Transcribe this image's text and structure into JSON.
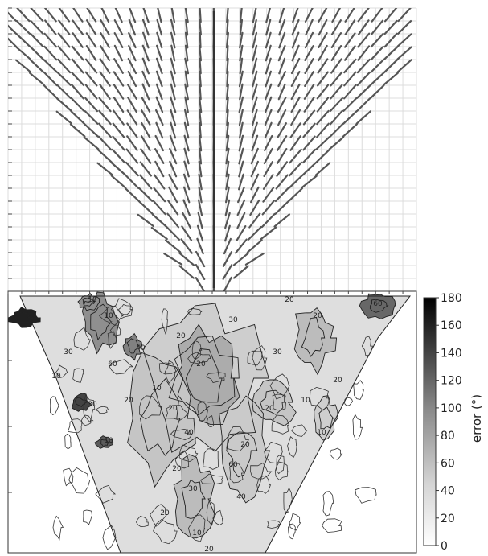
{
  "chart_data": [
    {
      "type": "quiver",
      "title": "",
      "xlabel": "",
      "ylabel": "",
      "grid": true,
      "grid_columns": 30,
      "grid_rows": 22,
      "stroke_color": "#555555",
      "description_of_field": "orientation line field; vertical at centre, fanning outward toward the edges, within a downward-pointing triangle"
    },
    {
      "type": "heatmap",
      "subtype": "contour",
      "title": "",
      "xlabel": "",
      "ylabel": "",
      "colorbar": {
        "label": "error (°)",
        "min": 0,
        "max": 180,
        "ticks": [
          0,
          20,
          40,
          60,
          80,
          100,
          120,
          140,
          160,
          180
        ],
        "low_color": "#ffffff",
        "high_color": "#000000"
      },
      "contour_levels": [
        10,
        20,
        30,
        40,
        60
      ],
      "contour_labels": [
        {
          "text": "10"
        },
        {
          "text": "20"
        },
        {
          "text": "30"
        },
        {
          "text": "40"
        },
        {
          "text": "60"
        },
        {
          "text": "20"
        },
        {
          "text": "10"
        },
        {
          "text": "30"
        },
        {
          "text": "20"
        },
        {
          "text": "10"
        },
        {
          "text": "20"
        },
        {
          "text": "40"
        },
        {
          "text": "20"
        },
        {
          "text": "10"
        },
        {
          "text": "30"
        },
        {
          "text": "20"
        },
        {
          "text": "20"
        },
        {
          "text": "60"
        },
        {
          "text": "10"
        },
        {
          "text": "20"
        },
        {
          "text": "30"
        },
        {
          "text": "20"
        },
        {
          "text": "10"
        },
        {
          "text": "20"
        },
        {
          "text": "40"
        },
        {
          "text": "20"
        },
        {
          "text": "60"
        },
        {
          "text": "20"
        },
        {
          "text": "10"
        },
        {
          "text": "20"
        },
        {
          "text": "30"
        },
        {
          "text": "10"
        }
      ]
    }
  ]
}
